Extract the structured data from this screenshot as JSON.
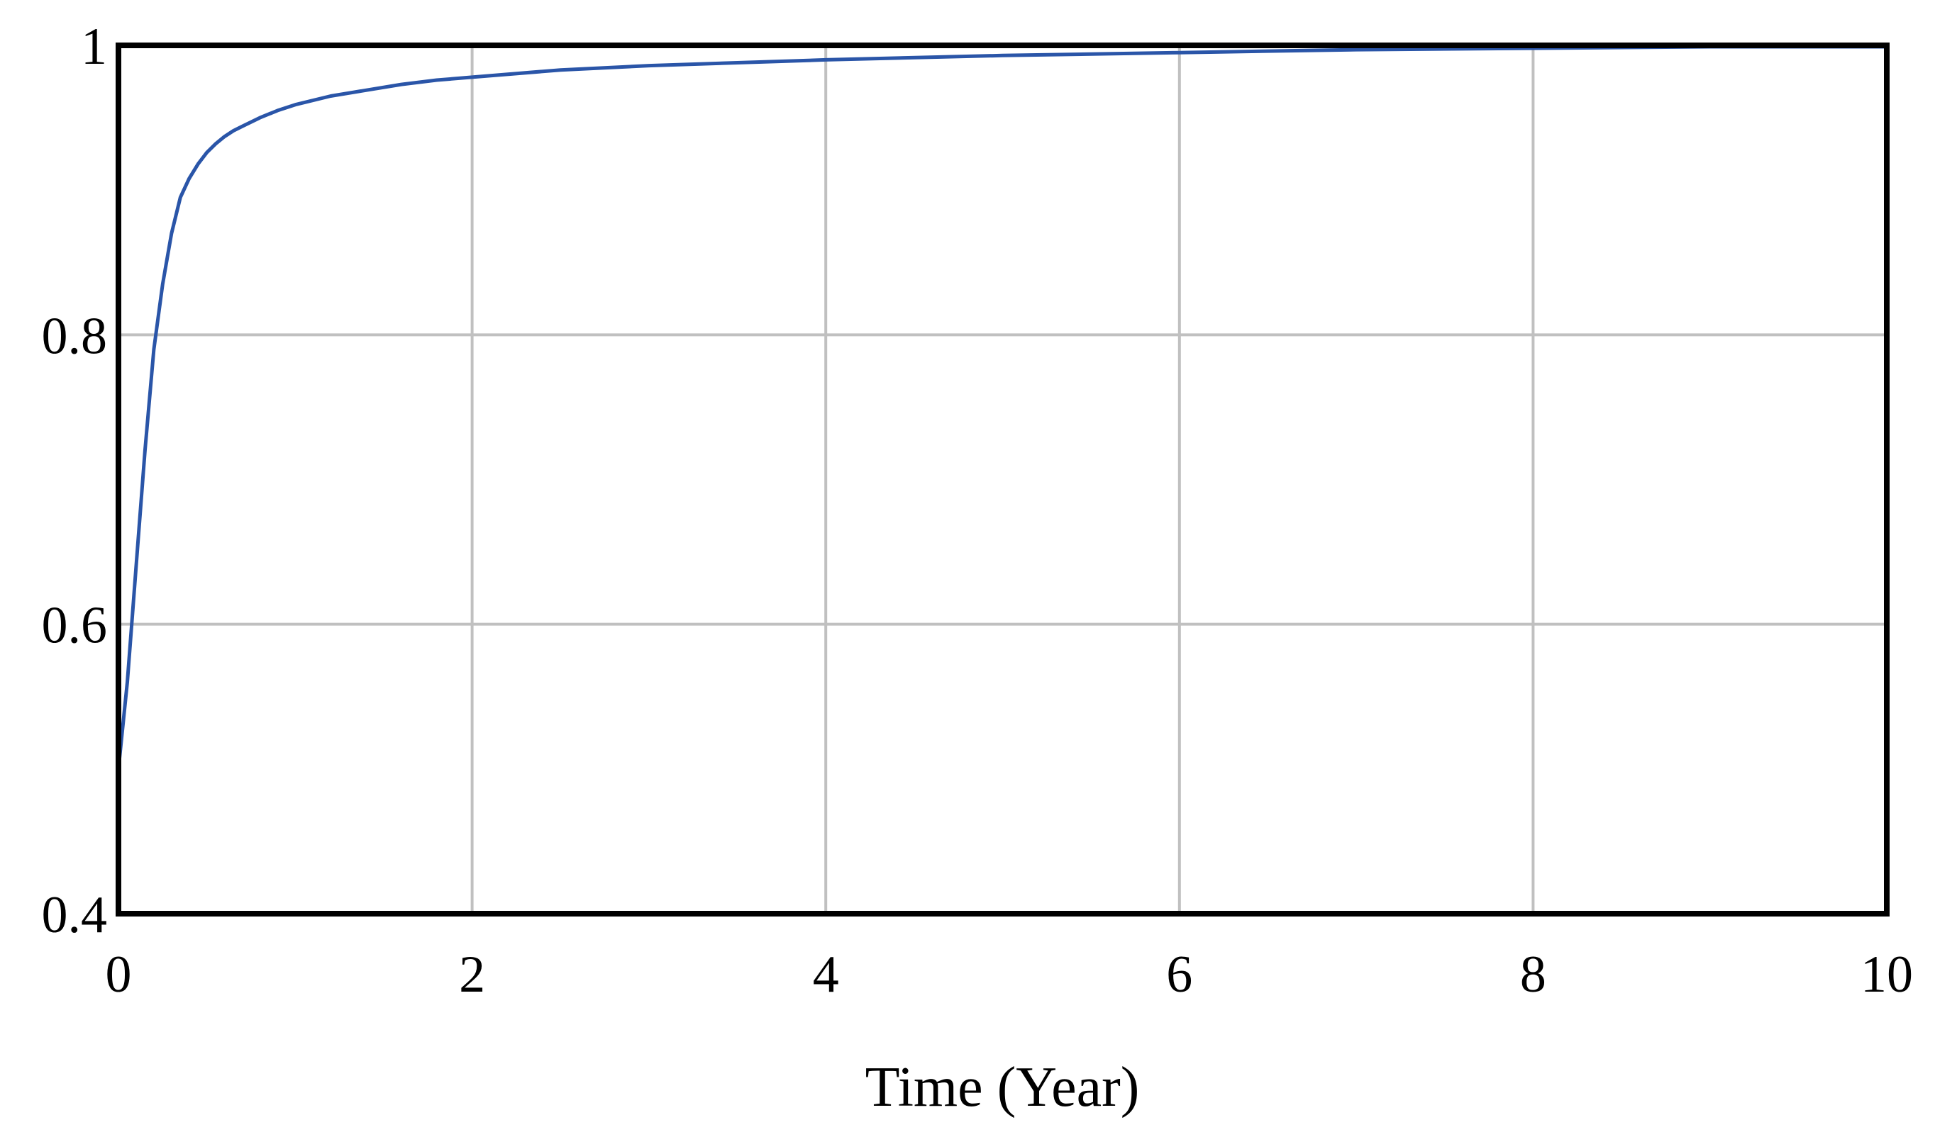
{
  "chart_data": {
    "type": "line",
    "title": "",
    "xlabel": "Time (Year)",
    "ylabel": "",
    "xlim": [
      0,
      10
    ],
    "ylim": [
      0.4,
      1
    ],
    "xticks": [
      0,
      2,
      4,
      6,
      8,
      10
    ],
    "xtick_labels": [
      "0",
      "2",
      "4",
      "6",
      "8",
      "10"
    ],
    "yticks": [
      0.4,
      0.6,
      0.8,
      1
    ],
    "ytick_labels": [
      "0.4",
      "0.6",
      "0.8",
      "1"
    ],
    "grid": true,
    "legend": "none",
    "series": [
      {
        "color": "#2a55a8",
        "x": [
          0,
          0.05,
          0.1,
          0.15,
          0.2,
          0.25,
          0.3,
          0.35,
          0.4,
          0.45,
          0.5,
          0.55,
          0.6,
          0.65,
          0.7,
          0.8,
          0.9,
          1.0,
          1.2,
          1.4,
          1.6,
          1.8,
          2.0,
          2.5,
          3.0,
          3.5,
          4.0,
          5.0,
          6.0,
          7.0,
          8.0,
          9.0,
          10.0
        ],
        "y": [
          0.5,
          0.56,
          0.64,
          0.72,
          0.79,
          0.835,
          0.87,
          0.895,
          0.908,
          0.918,
          0.926,
          0.932,
          0.937,
          0.941,
          0.944,
          0.95,
          0.955,
          0.959,
          0.965,
          0.969,
          0.973,
          0.976,
          0.978,
          0.983,
          0.986,
          0.988,
          0.99,
          0.993,
          0.995,
          0.997,
          0.998,
          0.999,
          0.999
        ]
      }
    ]
  }
}
